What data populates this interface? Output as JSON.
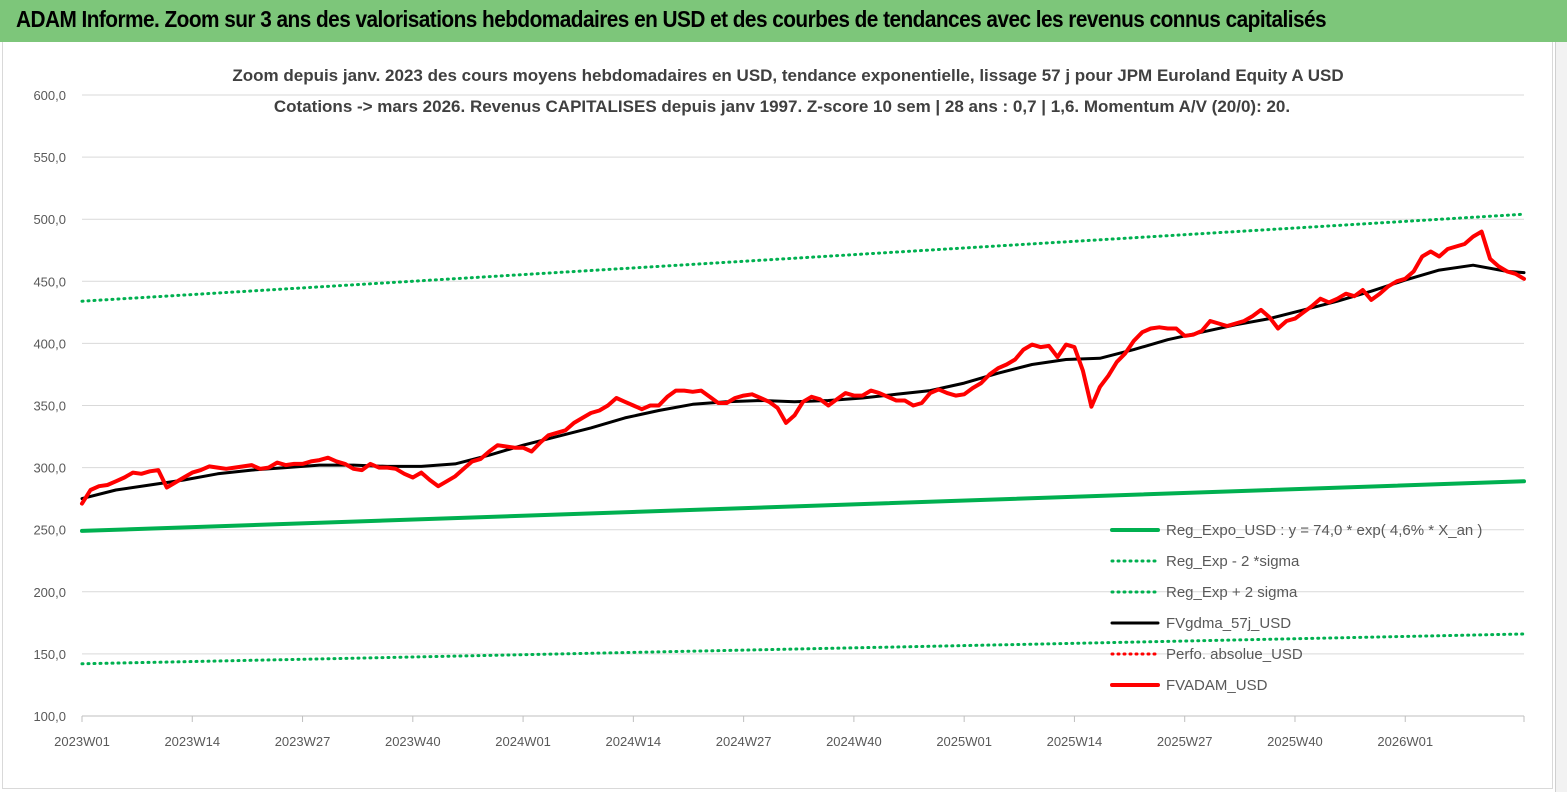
{
  "header": {
    "title": "ADAM Informe. Zoom sur 3 ans des valorisations hebdomadaires en USD et des courbes de tendances avec les revenus connus capitalisés",
    "band_color": "#7dc67a"
  },
  "chart_data": {
    "type": "line",
    "title_lines": [
      "Zoom depuis janv. 2023 des cours moyens hebdomadaires en USD, tendance exponentielle, lissage 57 j pour JPM Euroland Equity A USD",
      "Cotations -> mars 2026. Revenus CAPITALISES depuis janv 1997. Z-score 10 sem | 28 ans : 0,7 | 1,6. Momentum A/V (20/0): 20."
    ],
    "ylim": [
      100,
      600
    ],
    "yticks": [
      "100,0",
      "150,0",
      "200,0",
      "250,0",
      "300,0",
      "350,0",
      "400,0",
      "450,0",
      "500,0",
      "550,0",
      "600,0"
    ],
    "x_count": 170,
    "xticks": [
      {
        "index": 0,
        "label": "2023W01"
      },
      {
        "index": 13,
        "label": "2023W14"
      },
      {
        "index": 26,
        "label": "2023W27"
      },
      {
        "index": 39,
        "label": "2023W40"
      },
      {
        "index": 52,
        "label": "2024W01"
      },
      {
        "index": 65,
        "label": "2024W14"
      },
      {
        "index": 78,
        "label": "2024W27"
      },
      {
        "index": 91,
        "label": "2024W40"
      },
      {
        "index": 104,
        "label": "2025W01"
      },
      {
        "index": 117,
        "label": "2025W14"
      },
      {
        "index": 130,
        "label": "2025W27"
      },
      {
        "index": 143,
        "label": "2025W40"
      },
      {
        "index": 156,
        "label": "2026W01"
      }
    ],
    "grid": "horizontal",
    "legend_position": "bottom-right",
    "series": [
      {
        "name": "Reg_Expo_USD : y = 74,0 * exp( 4,6% *  X_an )",
        "color": "#00b050",
        "style": "solid-thick",
        "points": [
          [
            0,
            249
          ],
          [
            170,
            289
          ]
        ]
      },
      {
        "name": "Reg_Exp - 2 *sigma",
        "color": "#00b050",
        "style": "dotted",
        "points": [
          [
            0,
            142
          ],
          [
            170,
            166
          ]
        ]
      },
      {
        "name": "Reg_Exp + 2 sigma",
        "color": "#00b050",
        "style": "dotted",
        "points": [
          [
            0,
            434
          ],
          [
            170,
            504
          ]
        ]
      },
      {
        "name": "FVgdma_57j_USD",
        "color": "#000000",
        "style": "solid",
        "points": [
          [
            0,
            275
          ],
          [
            4,
            282
          ],
          [
            8,
            286
          ],
          [
            12,
            290
          ],
          [
            16,
            295
          ],
          [
            20,
            298
          ],
          [
            24,
            300
          ],
          [
            28,
            302
          ],
          [
            32,
            302
          ],
          [
            36,
            301
          ],
          [
            40,
            301
          ],
          [
            44,
            303
          ],
          [
            48,
            310
          ],
          [
            52,
            318
          ],
          [
            56,
            325
          ],
          [
            60,
            332
          ],
          [
            64,
            340
          ],
          [
            68,
            346
          ],
          [
            72,
            351
          ],
          [
            76,
            353
          ],
          [
            80,
            354
          ],
          [
            84,
            353
          ],
          [
            88,
            354
          ],
          [
            92,
            356
          ],
          [
            96,
            359
          ],
          [
            100,
            362
          ],
          [
            104,
            368
          ],
          [
            108,
            376
          ],
          [
            112,
            383
          ],
          [
            116,
            387
          ],
          [
            120,
            388
          ],
          [
            124,
            395
          ],
          [
            128,
            403
          ],
          [
            132,
            409
          ],
          [
            136,
            415
          ],
          [
            140,
            420
          ],
          [
            144,
            427
          ],
          [
            148,
            434
          ],
          [
            152,
            442
          ],
          [
            156,
            451
          ],
          [
            160,
            459
          ],
          [
            164,
            463
          ],
          [
            168,
            458
          ],
          [
            170,
            457
          ]
        ]
      },
      {
        "name": "Perfo. absolue_USD",
        "color": "#ff0000",
        "style": "dotted",
        "points": []
      },
      {
        "name": "FVADAM_USD",
        "color": "#ff0000",
        "style": "solid-thick",
        "points": [
          [
            0,
            271
          ],
          [
            1,
            282
          ],
          [
            2,
            285
          ],
          [
            3,
            286
          ],
          [
            4,
            289
          ],
          [
            5,
            292
          ],
          [
            6,
            296
          ],
          [
            7,
            295
          ],
          [
            8,
            297
          ],
          [
            9,
            298
          ],
          [
            10,
            284
          ],
          [
            11,
            288
          ],
          [
            12,
            292
          ],
          [
            13,
            296
          ],
          [
            14,
            298
          ],
          [
            15,
            301
          ],
          [
            16,
            300
          ],
          [
            17,
            299
          ],
          [
            18,
            300
          ],
          [
            19,
            301
          ],
          [
            20,
            302
          ],
          [
            21,
            299
          ],
          [
            22,
            300
          ],
          [
            23,
            304
          ],
          [
            24,
            302
          ],
          [
            25,
            303
          ],
          [
            26,
            303
          ],
          [
            27,
            305
          ],
          [
            28,
            306
          ],
          [
            29,
            308
          ],
          [
            30,
            305
          ],
          [
            31,
            303
          ],
          [
            32,
            299
          ],
          [
            33,
            298
          ],
          [
            34,
            303
          ],
          [
            35,
            300
          ],
          [
            36,
            300
          ],
          [
            37,
            299
          ],
          [
            38,
            295
          ],
          [
            39,
            292
          ],
          [
            40,
            296
          ],
          [
            41,
            290
          ],
          [
            42,
            285
          ],
          [
            43,
            289
          ],
          [
            44,
            293
          ],
          [
            45,
            299
          ],
          [
            46,
            305
          ],
          [
            47,
            307
          ],
          [
            48,
            313
          ],
          [
            49,
            318
          ],
          [
            50,
            317
          ],
          [
            51,
            316
          ],
          [
            52,
            316
          ],
          [
            53,
            313
          ],
          [
            54,
            320
          ],
          [
            55,
            326
          ],
          [
            56,
            328
          ],
          [
            57,
            330
          ],
          [
            58,
            336
          ],
          [
            59,
            340
          ],
          [
            60,
            344
          ],
          [
            61,
            346
          ],
          [
            62,
            350
          ],
          [
            63,
            356
          ],
          [
            64,
            353
          ],
          [
            65,
            350
          ],
          [
            66,
            347
          ],
          [
            67,
            350
          ],
          [
            68,
            350
          ],
          [
            69,
            357
          ],
          [
            70,
            362
          ],
          [
            71,
            362
          ],
          [
            72,
            361
          ],
          [
            73,
            362
          ],
          [
            74,
            357
          ],
          [
            75,
            352
          ],
          [
            76,
            352
          ],
          [
            77,
            356
          ],
          [
            78,
            358
          ],
          [
            79,
            359
          ],
          [
            80,
            356
          ],
          [
            81,
            353
          ],
          [
            82,
            348
          ],
          [
            83,
            336
          ],
          [
            84,
            342
          ],
          [
            85,
            353
          ],
          [
            86,
            357
          ],
          [
            87,
            355
          ],
          [
            88,
            350
          ],
          [
            89,
            355
          ],
          [
            90,
            360
          ],
          [
            91,
            358
          ],
          [
            92,
            358
          ],
          [
            93,
            362
          ],
          [
            94,
            360
          ],
          [
            95,
            357
          ],
          [
            96,
            354
          ],
          [
            97,
            354
          ],
          [
            98,
            350
          ],
          [
            99,
            352
          ],
          [
            100,
            360
          ],
          [
            101,
            363
          ],
          [
            102,
            360
          ],
          [
            103,
            358
          ],
          [
            104,
            359
          ],
          [
            105,
            364
          ],
          [
            106,
            368
          ],
          [
            107,
            375
          ],
          [
            108,
            380
          ],
          [
            109,
            383
          ],
          [
            110,
            387
          ],
          [
            111,
            395
          ],
          [
            112,
            399
          ],
          [
            113,
            397
          ],
          [
            114,
            398
          ],
          [
            115,
            389
          ],
          [
            116,
            399
          ],
          [
            117,
            397
          ],
          [
            118,
            378
          ],
          [
            119,
            349
          ],
          [
            120,
            365
          ],
          [
            121,
            374
          ],
          [
            122,
            385
          ],
          [
            123,
            392
          ],
          [
            124,
            402
          ],
          [
            125,
            409
          ],
          [
            126,
            412
          ],
          [
            127,
            413
          ],
          [
            128,
            412
          ],
          [
            129,
            412
          ],
          [
            130,
            406
          ],
          [
            131,
            407
          ],
          [
            132,
            410
          ],
          [
            133,
            418
          ],
          [
            134,
            416
          ],
          [
            135,
            414
          ],
          [
            136,
            416
          ],
          [
            137,
            418
          ],
          [
            138,
            422
          ],
          [
            139,
            427
          ],
          [
            140,
            421
          ],
          [
            141,
            412
          ],
          [
            142,
            418
          ],
          [
            143,
            420
          ],
          [
            144,
            425
          ],
          [
            145,
            430
          ],
          [
            146,
            436
          ],
          [
            147,
            433
          ],
          [
            148,
            436
          ],
          [
            149,
            440
          ],
          [
            150,
            438
          ],
          [
            151,
            443
          ],
          [
            152,
            435
          ],
          [
            153,
            440
          ],
          [
            154,
            446
          ],
          [
            155,
            450
          ],
          [
            156,
            452
          ],
          [
            157,
            458
          ],
          [
            158,
            470
          ],
          [
            159,
            474
          ],
          [
            160,
            470
          ],
          [
            161,
            476
          ],
          [
            162,
            478
          ],
          [
            163,
            480
          ],
          [
            164,
            486
          ],
          [
            165,
            490
          ],
          [
            166,
            468
          ],
          [
            167,
            462
          ],
          [
            168,
            458
          ],
          [
            169,
            456
          ],
          [
            170,
            452
          ]
        ]
      }
    ]
  }
}
